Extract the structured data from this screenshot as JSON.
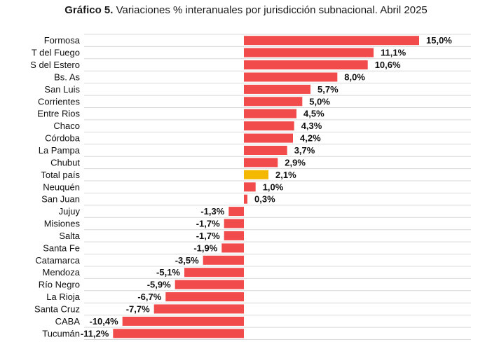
{
  "chart_data": {
    "type": "bar",
    "orientation": "horizontal",
    "title_prefix": "Gráfico 5.",
    "title": "Variaciones % interanuales por jurisdicción subnacional. Abril 2025",
    "xlabel": "",
    "ylabel": "",
    "grid": "horizontal",
    "legend": "none",
    "xlim": [
      -11.2,
      15.0
    ],
    "categories": [
      "Formosa",
      "T del Fuego",
      "S del Estero",
      "Bs. As",
      "San Luis",
      "Corrientes",
      "Entre Rios",
      "Chaco",
      "Córdoba",
      "La Pampa",
      "Chubut",
      "Total país",
      "Neuquén",
      "San Juan",
      "Jujuy",
      "Misiones",
      "Salta",
      "Santa Fe",
      "Catamarca",
      "Mendoza",
      "Río Negro",
      "La Rioja",
      "Santa Cruz",
      "CABA",
      "Tucumán"
    ],
    "values": [
      15.0,
      11.1,
      10.6,
      8.0,
      5.7,
      5.0,
      4.5,
      4.3,
      4.2,
      3.7,
      2.9,
      2.1,
      1.0,
      0.3,
      -1.3,
      -1.7,
      -1.7,
      -1.9,
      -3.5,
      -5.1,
      -5.9,
      -6.7,
      -7.7,
      -10.4,
      -11.2
    ],
    "value_labels": [
      "15,0%",
      "11,1%",
      "10,6%",
      "8,0%",
      "5,7%",
      "5,0%",
      "4,5%",
      "4,3%",
      "4,2%",
      "3,7%",
      "2,9%",
      "2,1%",
      "1,0%",
      "0,3%",
      "-1,3%",
      "-1,7%",
      "-1,7%",
      "-1,9%",
      "-3,5%",
      "-5,1%",
      "-5,9%",
      "-6,7%",
      "-7,7%",
      "-10,4%",
      "-11,2%"
    ],
    "highlight_category": "Total país",
    "colors": {
      "bar": "#f24b4b",
      "highlight": "#f5b800",
      "grid": "#d9d9d9",
      "text": "#111111"
    }
  }
}
